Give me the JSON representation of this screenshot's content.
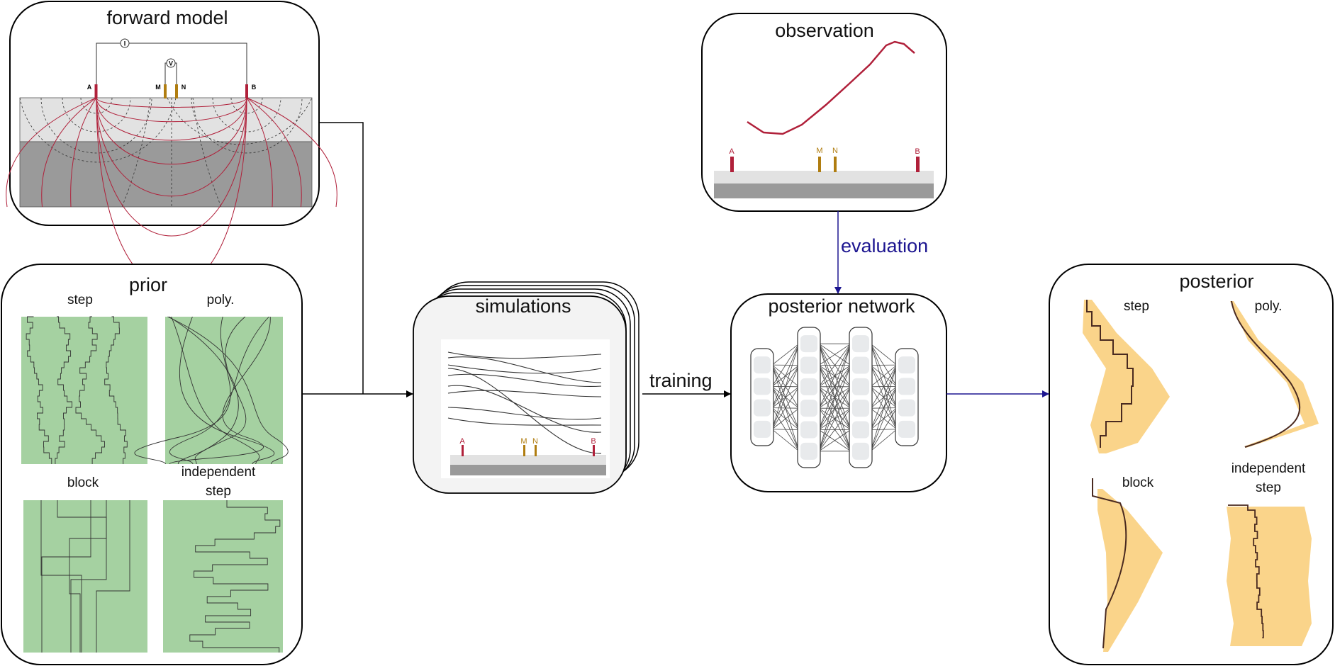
{
  "nodes": {
    "forward_model": {
      "title": "forward model"
    },
    "prior": {
      "title": "prior",
      "panels": {
        "step": "step",
        "poly": "poly.",
        "block": "block",
        "independent_step": [
          "independent",
          "step"
        ]
      }
    },
    "simulations": {
      "title": "simulations"
    },
    "observation": {
      "title": "observation"
    },
    "posterior_network": {
      "title": "posterior network"
    },
    "posterior": {
      "title": "posterior",
      "panels": {
        "step": "step",
        "poly": "poly.",
        "block": "block",
        "independent_step": [
          "independent",
          "step"
        ]
      }
    }
  },
  "edges": {
    "training": "training",
    "evaluation": "evaluation"
  },
  "electrodes": {
    "a": "A",
    "b": "B",
    "m": "M",
    "n": "N",
    "current": "I",
    "voltage": "V"
  },
  "colors": {
    "electrode_ab": "#b0203a",
    "electrode_mn": "#b07d10",
    "prior_fill": "#a5d1a1",
    "posterior_fill": "#f9cd75",
    "evaluation_arrow": "#1c1590",
    "current_line": "#b0203a"
  }
}
